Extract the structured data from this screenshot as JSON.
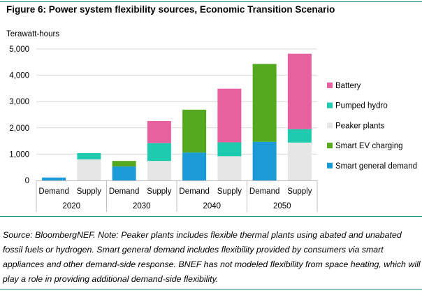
{
  "header": {
    "title": "Figure 6: Power system flexibility sources, Economic Transition Scenario",
    "units": "Terawatt-hours"
  },
  "footer": {
    "source": "Source: BloombergNEF. Note: Peaker plants includes flexible thermal plants using abated and unabated fossil fuels or hydrogen. Smart general demand includes flexibility provided by consumers via smart appliances and other demand-side response. BNEF has not modeled flexibility from space heating, which will play a role in providing additional demand-side flexibility."
  },
  "chart_data": {
    "type": "bar",
    "stacked": true,
    "title": "Figure 6: Power system flexibility sources, Economic Transition Scenario",
    "ylabel": "Terawatt-hours",
    "xlabel": "",
    "ylim": [
      0,
      5000
    ],
    "yticks": [
      0,
      1000,
      2000,
      3000,
      4000,
      5000
    ],
    "ytick_labels": [
      "0",
      "1,000",
      "2,000",
      "3,000",
      "4,000",
      "5,000"
    ],
    "grid": true,
    "legend_position": "right",
    "groups": [
      "2020",
      "2030",
      "2040",
      "2050"
    ],
    "categories": [
      "Demand",
      "Supply",
      "Demand",
      "Supply",
      "Demand",
      "Supply",
      "Demand",
      "Supply"
    ],
    "series": [
      {
        "name": "Smart general demand",
        "color": "#1a9ad6",
        "values": [
          110,
          0,
          530,
          0,
          1060,
          0,
          1470,
          0
        ]
      },
      {
        "name": "Smart EV charging",
        "color": "#54a91f",
        "values": [
          0,
          0,
          210,
          0,
          1630,
          0,
          2960,
          0
        ]
      },
      {
        "name": "Peaker plants",
        "color": "#e6e6e6",
        "values": [
          0,
          800,
          0,
          740,
          0,
          920,
          0,
          1440
        ]
      },
      {
        "name": "Pumped hydro",
        "color": "#1fcbae",
        "values": [
          0,
          240,
          0,
          680,
          0,
          530,
          0,
          510
        ]
      },
      {
        "name": "Battery",
        "color": "#e8619f",
        "values": [
          0,
          0,
          0,
          840,
          0,
          2040,
          0,
          2870
        ]
      }
    ],
    "legend_order": [
      "Battery",
      "Pumped hydro",
      "Peaker plants",
      "Smart EV charging",
      "Smart general demand"
    ]
  }
}
